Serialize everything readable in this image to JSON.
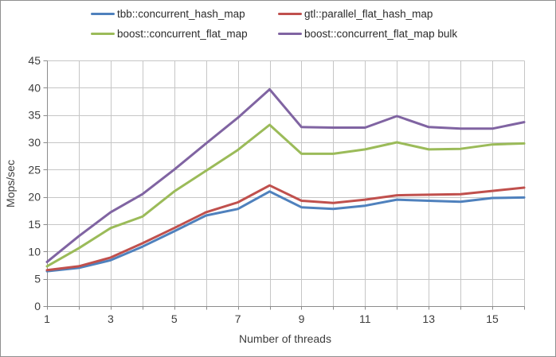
{
  "chart_data": {
    "type": "line",
    "title": "",
    "xlabel": "Number of threads",
    "ylabel": "Mops/sec",
    "x": [
      1,
      2,
      3,
      4,
      5,
      6,
      7,
      8,
      9,
      10,
      11,
      12,
      13,
      14,
      15,
      16
    ],
    "x_tick_labels": [
      1,
      3,
      5,
      7,
      9,
      11,
      13,
      15
    ],
    "y_ticks": [
      0,
      5,
      10,
      15,
      20,
      25,
      30,
      35,
      40,
      45
    ],
    "xlim": [
      1,
      16
    ],
    "ylim": [
      0,
      45
    ],
    "grid": true,
    "legend_position": "top",
    "series": [
      {
        "name": "tbb::concurrent_hash_map",
        "color": "#4F81BD",
        "values": [
          6.4,
          7.0,
          8.4,
          10.9,
          13.7,
          16.6,
          17.8,
          21.0,
          18.1,
          17.8,
          18.4,
          19.5,
          19.3,
          19.1,
          19.8,
          19.9
        ]
      },
      {
        "name": "gtl::parallel_flat_hash_map",
        "color": "#C0504D",
        "values": [
          6.6,
          7.3,
          8.9,
          11.5,
          14.3,
          17.2,
          19.0,
          22.1,
          19.3,
          18.9,
          19.5,
          20.3,
          20.4,
          20.5,
          21.1,
          21.7
        ]
      },
      {
        "name": "boost::concurrent_flat_map",
        "color": "#9BBB59",
        "values": [
          7.3,
          10.6,
          14.3,
          16.4,
          21.0,
          24.8,
          28.6,
          33.2,
          27.9,
          27.9,
          28.7,
          30.0,
          28.7,
          28.8,
          29.6,
          29.8
        ]
      },
      {
        "name": "boost::concurrent_flat_map bulk",
        "color": "#8064A2",
        "values": [
          8.1,
          12.8,
          17.2,
          20.5,
          25.0,
          29.8,
          34.5,
          39.7,
          32.8,
          32.7,
          32.7,
          34.8,
          32.8,
          32.5,
          32.5,
          33.7
        ]
      }
    ]
  },
  "style": {
    "gridline_color": "#C6C6C6",
    "axis_color": "#8C8C8C",
    "text_color": "#3d3d3d",
    "line_width": 3
  }
}
